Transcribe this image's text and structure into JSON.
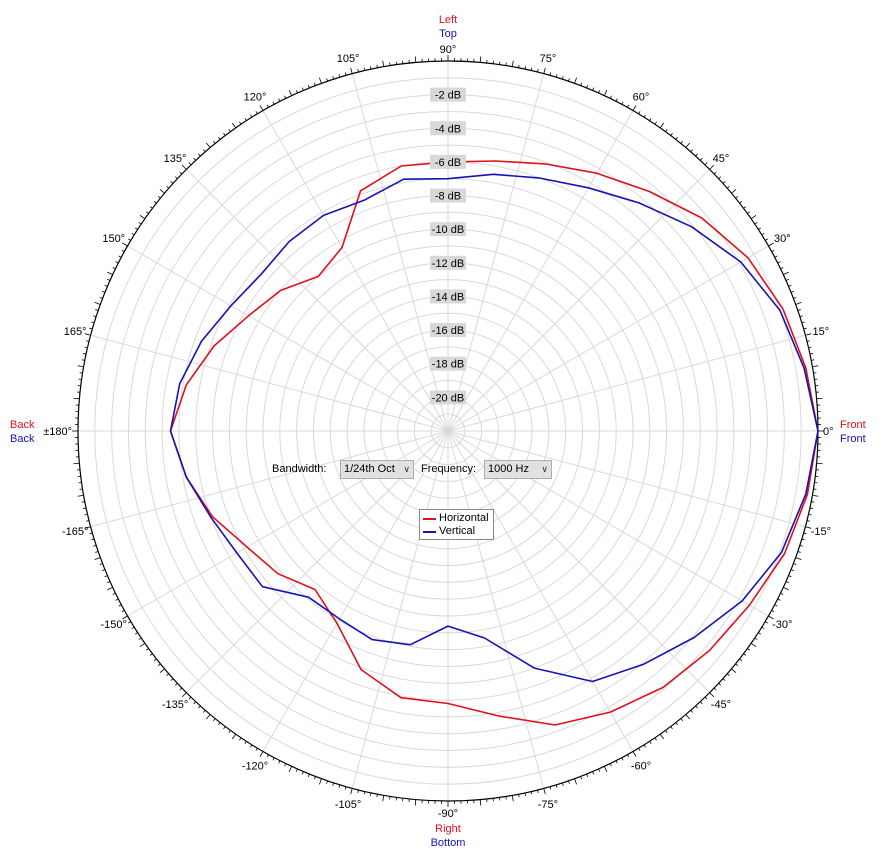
{
  "controls": {
    "bandwidth_label": "Bandwidth:",
    "bandwidth_value": "1/24th Oct",
    "frequency_label": "Frequency:",
    "frequency_value": "1000 Hz"
  },
  "colors": {
    "horizontal": "#e0101a",
    "vertical": "#1414b4",
    "grid": "#d9d9d9",
    "axis": "#000000"
  },
  "chart_data": {
    "type": "line",
    "coordinate_system": "polar",
    "radial_ticks": [
      "-2 dB",
      "-4 dB",
      "-6 dB",
      "-8 dB",
      "-10 dB",
      "-12 dB",
      "-14 dB",
      "-16 dB",
      "-18 dB",
      "-20 dB"
    ],
    "radial_range_db": [
      -22,
      0
    ],
    "angle_ticks": [
      {
        "deg": 0,
        "label": "0°"
      },
      {
        "deg": 15,
        "label": "15°"
      },
      {
        "deg": 30,
        "label": "30°"
      },
      {
        "deg": 45,
        "label": "45°"
      },
      {
        "deg": 60,
        "label": "60°"
      },
      {
        "deg": 75,
        "label": "75°"
      },
      {
        "deg": 90,
        "label": "90°"
      },
      {
        "deg": 105,
        "label": "105°"
      },
      {
        "deg": 120,
        "label": "120°"
      },
      {
        "deg": 135,
        "label": "135°"
      },
      {
        "deg": 150,
        "label": "150°"
      },
      {
        "deg": 165,
        "label": "165°"
      },
      {
        "deg": 180,
        "label": "±180°"
      },
      {
        "deg": -165,
        "label": "-165°"
      },
      {
        "deg": -150,
        "label": "-150°"
      },
      {
        "deg": -135,
        "label": "-135°"
      },
      {
        "deg": -120,
        "label": "-120°"
      },
      {
        "deg": -105,
        "label": "-105°"
      },
      {
        "deg": -90,
        "label": "-90°"
      },
      {
        "deg": -75,
        "label": "-75°"
      },
      {
        "deg": -60,
        "label": "-60°"
      },
      {
        "deg": -45,
        "label": "-45°"
      },
      {
        "deg": -30,
        "label": "-30°"
      },
      {
        "deg": -15,
        "label": "-15°"
      }
    ],
    "direction_labels": {
      "top": {
        "horizontal": "Left",
        "vertical": "Top"
      },
      "bottom": {
        "horizontal": "Right",
        "vertical": "Bottom"
      },
      "right": {
        "horizontal": "Front",
        "vertical": "Front"
      },
      "left": {
        "horizontal": "Back",
        "vertical": "Back"
      }
    },
    "series": [
      {
        "name": "Horizontal",
        "color": "#e0101a",
        "points": [
          {
            "deg": 0,
            "db": 0.0
          },
          {
            "deg": 10,
            "db": -0.4
          },
          {
            "deg": 20,
            "db": -0.8
          },
          {
            "deg": 30,
            "db": -1.4
          },
          {
            "deg": 40,
            "db": -2.3
          },
          {
            "deg": 50,
            "db": -3.4
          },
          {
            "deg": 60,
            "db": -4.3
          },
          {
            "deg": 70,
            "db": -5.1
          },
          {
            "deg": 80,
            "db": -5.7
          },
          {
            "deg": 90,
            "db": -6.0
          },
          {
            "deg": 100,
            "db": -6.0
          },
          {
            "deg": 110,
            "db": -6.8
          },
          {
            "deg": 120,
            "db": -9.4
          },
          {
            "deg": 130,
            "db": -10.0
          },
          {
            "deg": 140,
            "db": -9.0
          },
          {
            "deg": 150,
            "db": -8.3
          },
          {
            "deg": 160,
            "db": -7.2
          },
          {
            "deg": 170,
            "db": -6.2
          },
          {
            "deg": 180,
            "db": -5.5
          },
          {
            "deg": -170,
            "db": -6.2
          },
          {
            "deg": -160,
            "db": -7.1
          },
          {
            "deg": -150,
            "db": -8.2
          },
          {
            "deg": -140,
            "db": -8.8
          },
          {
            "deg": -130,
            "db": -9.7
          },
          {
            "deg": -120,
            "db": -8.8
          },
          {
            "deg": -110,
            "db": -6.9
          },
          {
            "deg": -100,
            "db": -5.9
          },
          {
            "deg": -90,
            "db": -5.8
          },
          {
            "deg": -80,
            "db": -4.8
          },
          {
            "deg": -70,
            "db": -3.4
          },
          {
            "deg": -60,
            "db": -2.7
          },
          {
            "deg": -50,
            "db": -2.1
          },
          {
            "deg": -40,
            "db": -1.7
          },
          {
            "deg": -30,
            "db": -1.3
          },
          {
            "deg": -20,
            "db": -0.7
          },
          {
            "deg": -10,
            "db": -0.3
          },
          {
            "deg": 0,
            "db": 0.0
          }
        ]
      },
      {
        "name": "Vertical",
        "color": "#1414b4",
        "points": [
          {
            "deg": 0,
            "db": 0.0
          },
          {
            "deg": 10,
            "db": -0.5
          },
          {
            "deg": 20,
            "db": -1.0
          },
          {
            "deg": 30,
            "db": -1.9
          },
          {
            "deg": 40,
            "db": -3.1
          },
          {
            "deg": 50,
            "db": -4.3
          },
          {
            "deg": 60,
            "db": -5.3
          },
          {
            "deg": 70,
            "db": -6.0
          },
          {
            "deg": 80,
            "db": -6.5
          },
          {
            "deg": 90,
            "db": -7.0
          },
          {
            "deg": 100,
            "db": -6.8
          },
          {
            "deg": 110,
            "db": -7.4
          },
          {
            "deg": 120,
            "db": -7.2
          },
          {
            "deg": 130,
            "db": -7.3
          },
          {
            "deg": 140,
            "db": -7.5
          },
          {
            "deg": 150,
            "db": -7.1
          },
          {
            "deg": 160,
            "db": -6.4
          },
          {
            "deg": 170,
            "db": -5.8
          },
          {
            "deg": 180,
            "db": -5.5
          },
          {
            "deg": -170,
            "db": -6.2
          },
          {
            "deg": -160,
            "db": -7.0
          },
          {
            "deg": -150,
            "db": -7.5
          },
          {
            "deg": -140,
            "db": -7.6
          },
          {
            "deg": -130,
            "db": -9.1
          },
          {
            "deg": -120,
            "db": -9.1
          },
          {
            "deg": -110,
            "db": -8.8
          },
          {
            "deg": -100,
            "db": -9.1
          },
          {
            "deg": -90,
            "db": -10.4
          },
          {
            "deg": -80,
            "db": -9.5
          },
          {
            "deg": -70,
            "db": -7.0
          },
          {
            "deg": -60,
            "db": -4.8
          },
          {
            "deg": -50,
            "db": -3.9
          },
          {
            "deg": -40,
            "db": -2.9
          },
          {
            "deg": -30,
            "db": -1.8
          },
          {
            "deg": -20,
            "db": -0.9
          },
          {
            "deg": -10,
            "db": -0.4
          },
          {
            "deg": 0,
            "db": 0.0
          }
        ]
      }
    ],
    "legend_placement": "center-below-origin",
    "grid": true
  }
}
